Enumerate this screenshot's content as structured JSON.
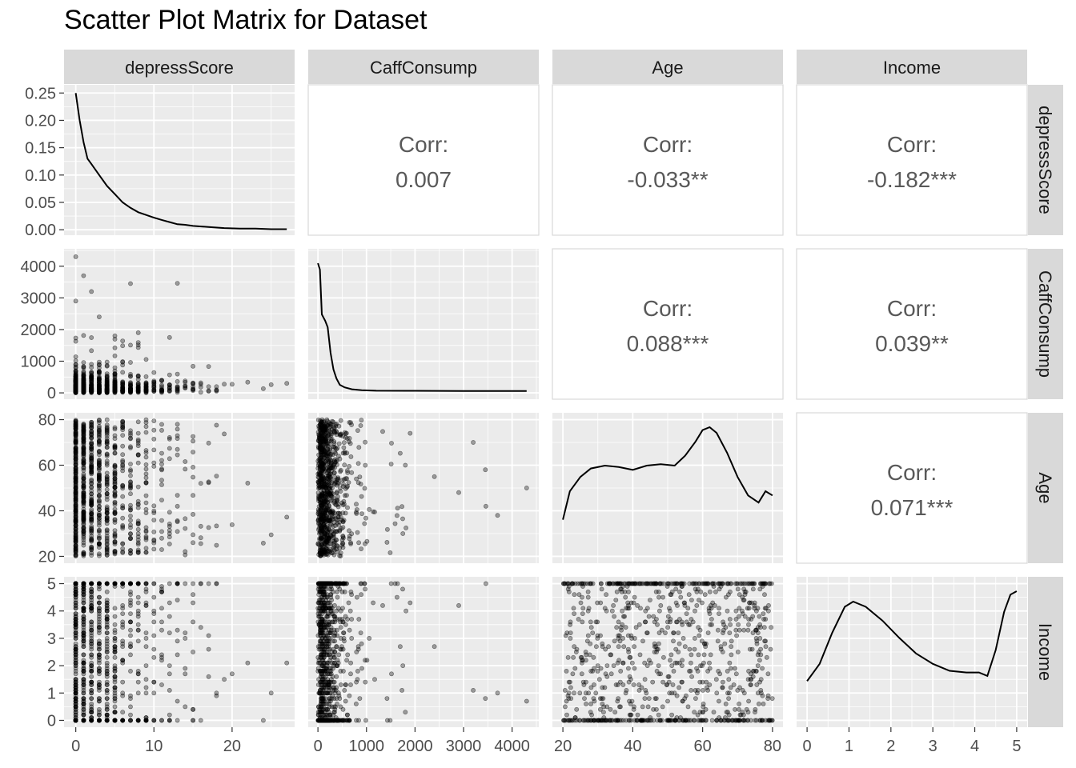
{
  "chart_data": {
    "type": "scatter_matrix",
    "title": "Scatter Plot Matrix for Dataset",
    "variables": [
      "depressScore",
      "CaffConsump",
      "Age",
      "Income"
    ],
    "corr_label": "Corr:",
    "correlations": [
      {
        "row": 0,
        "col": 1,
        "value": "0.007"
      },
      {
        "row": 0,
        "col": 2,
        "value": "-0.033**"
      },
      {
        "row": 0,
        "col": 3,
        "value": "-0.182***"
      },
      {
        "row": 1,
        "col": 2,
        "value": "0.088***"
      },
      {
        "row": 1,
        "col": 3,
        "value": "0.039**"
      },
      {
        "row": 2,
        "col": 3,
        "value": "0.071***"
      }
    ],
    "axes": {
      "depressScore": {
        "range": [
          -1.5,
          28
        ],
        "ticks": [
          0,
          10,
          20
        ],
        "tick_labels": [
          "0",
          "10",
          "20"
        ]
      },
      "CaffConsump": {
        "range": [
          -200,
          4550
        ],
        "ticks": [
          0,
          1000,
          2000,
          3000,
          4000
        ],
        "tick_labels": [
          "0",
          "1000",
          "2000",
          "3000",
          "4000"
        ]
      },
      "Age": {
        "range": [
          17,
          83
        ],
        "ticks": [
          20,
          40,
          60,
          80
        ],
        "tick_labels": [
          "20",
          "40",
          "60",
          "80"
        ]
      },
      "Income": {
        "range": [
          -0.25,
          5.25
        ],
        "ticks": [
          0,
          1,
          2,
          3,
          4,
          5
        ],
        "tick_labels": [
          "0",
          "1",
          "2",
          "3",
          "4",
          "5"
        ]
      }
    },
    "density_y_axis": {
      "range": [
        -0.01,
        0.265
      ],
      "ticks": [
        0,
        0.05,
        0.1,
        0.15,
        0.2,
        0.25
      ],
      "tick_labels": [
        "0.00",
        "0.05",
        "0.10",
        "0.15",
        "0.20",
        "0.25"
      ]
    },
    "densities": {
      "depressScore": [
        [
          0,
          0.25
        ],
        [
          0.5,
          0.2
        ],
        [
          1,
          0.16
        ],
        [
          1.5,
          0.13
        ],
        [
          2,
          0.12
        ],
        [
          3,
          0.1
        ],
        [
          4,
          0.08
        ],
        [
          5,
          0.065
        ],
        [
          6,
          0.05
        ],
        [
          7,
          0.04
        ],
        [
          8,
          0.032
        ],
        [
          9,
          0.027
        ],
        [
          10,
          0.022
        ],
        [
          11,
          0.018
        ],
        [
          12,
          0.014
        ],
        [
          13,
          0.01
        ],
        [
          14,
          0.009
        ],
        [
          15,
          0.007
        ],
        [
          17,
          0.005
        ],
        [
          19,
          0.003
        ],
        [
          21,
          0.002
        ],
        [
          23,
          0.002
        ],
        [
          25,
          0.001
        ],
        [
          27,
          0.001
        ]
      ],
      "CaffConsump": [
        [
          0,
          1.0
        ],
        [
          40,
          0.95
        ],
        [
          80,
          0.6
        ],
        [
          150,
          0.55
        ],
        [
          200,
          0.5
        ],
        [
          260,
          0.3
        ],
        [
          320,
          0.17
        ],
        [
          380,
          0.1
        ],
        [
          450,
          0.05
        ],
        [
          550,
          0.03
        ],
        [
          700,
          0.015
        ],
        [
          900,
          0.008
        ],
        [
          1200,
          0.004
        ],
        [
          2000,
          0.003
        ],
        [
          3000,
          0.002
        ],
        [
          4300,
          0.002
        ]
      ],
      "Age": [
        [
          20,
          0.25
        ],
        [
          22,
          0.45
        ],
        [
          25,
          0.55
        ],
        [
          28,
          0.61
        ],
        [
          32,
          0.63
        ],
        [
          36,
          0.62
        ],
        [
          40,
          0.6
        ],
        [
          44,
          0.63
        ],
        [
          48,
          0.64
        ],
        [
          52,
          0.63
        ],
        [
          55,
          0.7
        ],
        [
          58,
          0.8
        ],
        [
          60,
          0.88
        ],
        [
          62,
          0.9
        ],
        [
          64,
          0.86
        ],
        [
          67,
          0.72
        ],
        [
          70,
          0.55
        ],
        [
          73,
          0.42
        ],
        [
          76,
          0.37
        ],
        [
          78,
          0.45
        ],
        [
          80,
          0.42
        ]
      ],
      "Income": [
        [
          0,
          0.22
        ],
        [
          0.3,
          0.32
        ],
        [
          0.6,
          0.5
        ],
        [
          0.9,
          0.65
        ],
        [
          1.1,
          0.68
        ],
        [
          1.4,
          0.65
        ],
        [
          1.8,
          0.57
        ],
        [
          2.2,
          0.47
        ],
        [
          2.6,
          0.38
        ],
        [
          3.0,
          0.32
        ],
        [
          3.4,
          0.28
        ],
        [
          3.8,
          0.27
        ],
        [
          4.1,
          0.27
        ],
        [
          4.3,
          0.25
        ],
        [
          4.5,
          0.4
        ],
        [
          4.7,
          0.62
        ],
        [
          4.85,
          0.72
        ],
        [
          5.0,
          0.74
        ]
      ]
    },
    "density_relative_max": {
      "CaffConsump": 1.0,
      "Age": 0.9,
      "Income": 0.74
    },
    "grid": true,
    "point_color": "#000000",
    "point_opacity": 0.35
  },
  "colors": {
    "panel_bg": "#EBEBEB",
    "strip_bg": "#D9D9D9",
    "grid": "#FFFFFF",
    "text": "#4D4D4D",
    "corr_text": "#595959"
  }
}
